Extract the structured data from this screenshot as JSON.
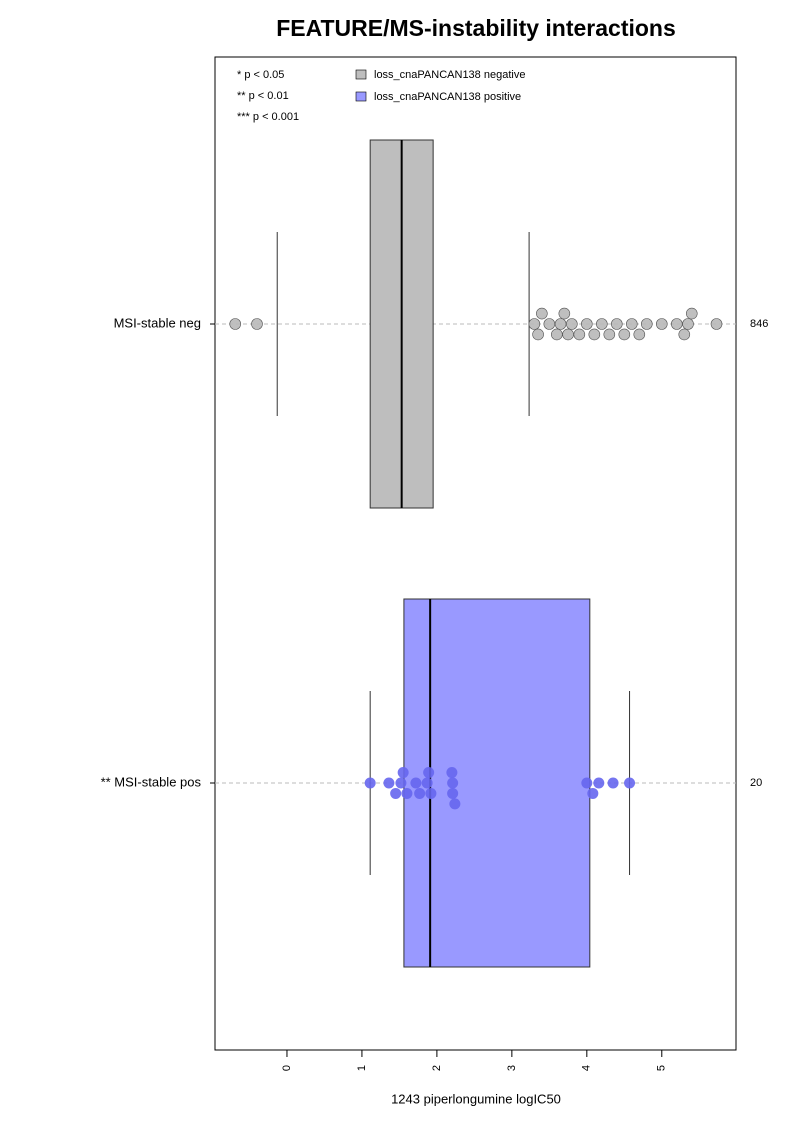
{
  "chart_data": {
    "type": "boxswarm",
    "title": "FEATURE/MS-instability interactions",
    "xlabel": "1243 piperlongumine logIC50",
    "xlim": [
      -0.96,
      5.99
    ],
    "xticks": [
      0,
      1,
      2,
      3,
      4,
      5
    ],
    "notes": [
      "* p < 0.05",
      "** p < 0.01",
      "*** p < 0.001"
    ],
    "series": [
      {
        "category": "MSI-stable neg",
        "name": "loss_cnaPANCAN138 negative",
        "n": 846,
        "color": "#bebebe",
        "point_color": "#b8b8b8",
        "whislo": -0.13,
        "q1": 1.11,
        "med": 1.53,
        "q3": 1.95,
        "whishi": 3.23,
        "points": [
          -0.69,
          -0.4,
          3.3,
          3.35,
          3.4,
          3.5,
          3.6,
          3.65,
          3.7,
          3.75,
          3.8,
          3.9,
          4.0,
          4.1,
          4.2,
          4.3,
          4.4,
          4.5,
          4.6,
          4.7,
          4.8,
          5.0,
          5.2,
          5.3,
          5.35,
          5.4,
          5.73
        ]
      },
      {
        "category": "** MSI-stable pos",
        "name": "loss_cnaPANCAN138 positive",
        "n": 20,
        "color": "#9999ff",
        "point_color": "#6666ee",
        "whislo": 1.11,
        "q1": 1.56,
        "med": 1.91,
        "q3": 4.04,
        "whishi": 4.57,
        "points": [
          1.11,
          1.36,
          1.45,
          1.52,
          1.55,
          1.6,
          1.72,
          1.77,
          1.87,
          1.89,
          1.92,
          2.21,
          2.21,
          2.2,
          2.24,
          4.0,
          4.08,
          4.16,
          4.35,
          4.57
        ]
      }
    ]
  }
}
